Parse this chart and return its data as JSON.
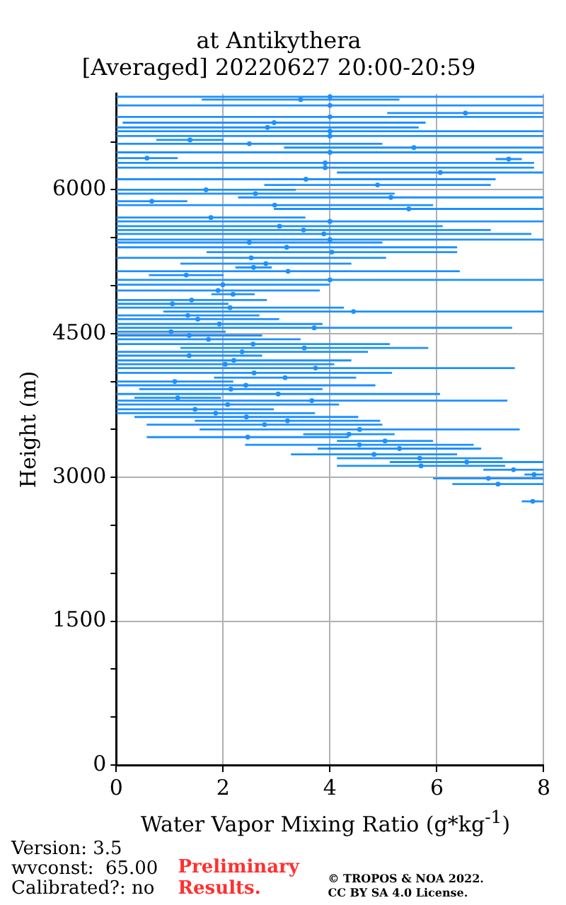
{
  "chart_data": {
    "type": "scatter",
    "title": "at Antikythera",
    "subtitle": "[Averaged] 20220627 20:00-20:59",
    "xlabel": "Water Vapor Mixing Ratio (g*kg$^{-1}$)",
    "ylabel": "Height (m)",
    "xlim": [
      0,
      8
    ],
    "xticks": [
      0,
      2,
      4,
      6,
      8
    ],
    "ylim": [
      0,
      7000
    ],
    "yticks": [
      0,
      {
        "value": 500,
        "label": null
      },
      {
        "value": 1000,
        "label": null
      },
      1500,
      {
        "value": 2000,
        "label": null
      },
      {
        "value": 2500,
        "label": null
      },
      3000,
      {
        "value": 3500,
        "label": null
      },
      {
        "value": 4000,
        "label": null
      },
      4500,
      {
        "value": 5000,
        "label": null
      },
      {
        "value": 5500,
        "label": null
      },
      6000,
      {
        "value": 6500,
        "label": null
      }
    ],
    "grid": true,
    "marker": "circle",
    "series": [
      {
        "color": "#1e90ff",
        "x": [
          4,
          3.45,
          4,
          6.535,
          4,
          2.955,
          2.83,
          4,
          4,
          1.38,
          2.49,
          5.57,
          4,
          0.575,
          7.345,
          3.91,
          3.91,
          6.065,
          3.55,
          4.89,
          1.68,
          2.605,
          5.14,
          0.665,
          2.965,
          5.475,
          1.77,
          4,
          3.055,
          3.505,
          3.885,
          4,
          2.49,
          3.19,
          4.035,
          2.525,
          2.8,
          2.57,
          3.215,
          1.31,
          4,
          1.995,
          1.905,
          2.185,
          1.41,
          1.05,
          2.13,
          4.44,
          1.34,
          1.525,
          1.93,
          3.705,
          1.025,
          1.365,
          1.725,
          2.56,
          3.52,
          2.355,
          1.365,
          2.2,
          2.04,
          3.73,
          2.58,
          3.16,
          1.095,
          2.425,
          2.145,
          3.03,
          1.15,
          3.66,
          2.085,
          1.475,
          1.86,
          2.435,
          3.205,
          2.775,
          4.555,
          4.355,
          2.46,
          5.03,
          4.55,
          5.3,
          4.825,
          5.68,
          6.56,
          5.705,
          7.435,
          7.82,
          6.965,
          7.145,
          7.795
        ],
        "values": [
          6970,
          6940,
          6880,
          6800,
          6760,
          6700,
          6650,
          6610,
          6560,
          6520,
          6480,
          6440,
          6390,
          6330,
          6320,
          6280,
          6230,
          6180,
          6110,
          6050,
          6000,
          5960,
          5920,
          5880,
          5840,
          5800,
          5710,
          5670,
          5620,
          5580,
          5540,
          5480,
          5450,
          5400,
          5350,
          5290,
          5230,
          5190,
          5150,
          5110,
          5060,
          5010,
          4950,
          4910,
          4850,
          4810,
          4770,
          4730,
          4690,
          4650,
          4600,
          4560,
          4520,
          4480,
          4440,
          4390,
          4350,
          4310,
          4270,
          4220,
          4180,
          4140,
          4090,
          4040,
          4000,
          3960,
          3920,
          3870,
          3830,
          3800,
          3760,
          3710,
          3670,
          3630,
          3590,
          3550,
          3500,
          3450,
          3420,
          3380,
          3340,
          3300,
          3240,
          3200,
          3160,
          3120,
          3080,
          3030,
          2990,
          2930,
          2750
        ],
        "xerrors": [
          [
            0,
            8
          ],
          [
            1.6,
            5.3
          ],
          [
            0,
            8
          ],
          [
            5.07,
            8
          ],
          [
            0,
            8
          ],
          [
            0.12,
            5.79
          ],
          [
            0,
            5.66
          ],
          [
            0,
            8
          ],
          [
            0,
            8
          ],
          [
            0.75,
            2.01
          ],
          [
            0,
            4.98
          ],
          [
            3.14,
            8
          ],
          [
            0,
            8
          ],
          [
            0,
            1.15
          ],
          [
            7.1,
            7.59
          ],
          [
            0,
            7.82
          ],
          [
            0,
            7.82
          ],
          [
            4.13,
            8
          ],
          [
            0,
            7.1
          ],
          [
            2.77,
            7.01
          ],
          [
            0,
            3.36
          ],
          [
            0,
            5.21
          ],
          [
            2.28,
            8
          ],
          [
            0,
            1.33
          ],
          [
            0,
            5.93
          ],
          [
            2.95,
            8
          ],
          [
            0,
            3.54
          ],
          [
            0,
            8
          ],
          [
            0,
            6.11
          ],
          [
            0,
            7.01
          ],
          [
            0,
            7.77
          ],
          [
            0,
            8
          ],
          [
            0,
            4.98
          ],
          [
            0,
            6.38
          ],
          [
            1.69,
            6.38
          ],
          [
            0,
            5.05
          ],
          [
            1.2,
            4.4
          ],
          [
            2.23,
            2.91
          ],
          [
            0,
            6.43
          ],
          [
            0.61,
            2.01
          ],
          [
            0,
            8
          ],
          [
            0,
            3.99
          ],
          [
            0,
            3.81
          ],
          [
            1.78,
            2.59
          ],
          [
            0,
            2.82
          ],
          [
            0,
            2.1
          ],
          [
            0,
            4.26
          ],
          [
            0.88,
            8
          ],
          [
            0,
            2.68
          ],
          [
            0,
            3.05
          ],
          [
            0,
            3.86
          ],
          [
            0,
            7.41
          ],
          [
            0,
            2.05
          ],
          [
            0,
            2.73
          ],
          [
            0,
            3.45
          ],
          [
            0,
            5.12
          ],
          [
            1.2,
            5.84
          ],
          [
            0,
            4.71
          ],
          [
            0,
            2.73
          ],
          [
            0,
            4.4
          ],
          [
            0,
            4.08
          ],
          [
            0,
            7.46
          ],
          [
            0,
            5.16
          ],
          [
            1.83,
            4.49
          ],
          [
            0,
            2.19
          ],
          [
            0,
            4.85
          ],
          [
            0.43,
            3.86
          ],
          [
            0,
            6.06
          ],
          [
            0.34,
            1.96
          ],
          [
            0,
            7.32
          ],
          [
            0,
            4.17
          ],
          [
            0,
            2.95
          ],
          [
            0,
            3.72
          ],
          [
            0.34,
            4.53
          ],
          [
            1.47,
            4.94
          ],
          [
            0.57,
            4.98
          ],
          [
            1.56,
            7.55
          ],
          [
            3.5,
            5.21
          ],
          [
            0.57,
            4.35
          ],
          [
            4.13,
            5.93
          ],
          [
            2.41,
            6.69
          ],
          [
            3.77,
            6.83
          ],
          [
            3.27,
            6.38
          ],
          [
            4.13,
            7.23
          ],
          [
            5.12,
            8
          ],
          [
            4.13,
            7.28
          ],
          [
            6.87,
            8
          ],
          [
            7.64,
            8
          ],
          [
            5.93,
            8
          ],
          [
            6.29,
            8
          ],
          [
            7.59,
            8
          ]
        ]
      }
    ],
    "annotations": [
      "Version: 3.5",
      "wvconst:  65.00",
      "Calibrated?: no",
      "Preliminary Results.",
      "© TROPOS & NOA 2022. CC BY SA 4.0 License."
    ]
  }
}
